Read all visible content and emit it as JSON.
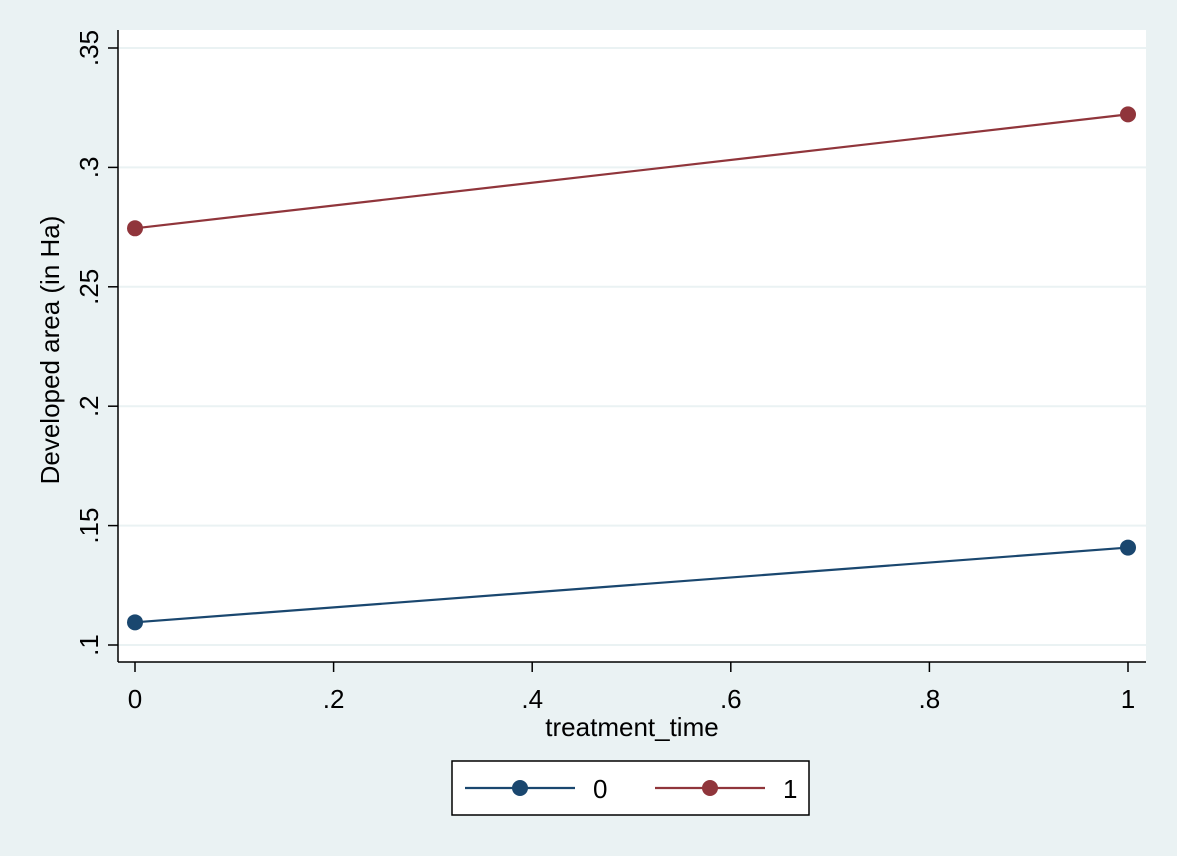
{
  "chart_data": {
    "type": "line",
    "title": "",
    "xlabel": "treatment_time",
    "ylabel": "Developed area (in Ha)",
    "xlim": [
      0,
      1
    ],
    "ylim": [
      0.1,
      0.35
    ],
    "x_ticks": [
      0,
      0.2,
      0.4,
      0.6,
      0.8,
      1
    ],
    "x_tick_labels": [
      "0",
      ".2",
      ".4",
      ".6",
      ".8",
      "1"
    ],
    "y_ticks": [
      0.1,
      0.15,
      0.2,
      0.25,
      0.3,
      0.35
    ],
    "y_tick_labels": [
      ".1",
      ".15",
      ".2",
      ".25",
      ".3",
      ".35"
    ],
    "grid": true,
    "legend_position": "bottom-center",
    "series": [
      {
        "name": "0",
        "color": "#1a476f",
        "x": [
          0,
          1
        ],
        "y": [
          0.1095,
          0.1408
        ]
      },
      {
        "name": "1",
        "color": "#90353b",
        "x": [
          0,
          1
        ],
        "y": [
          0.2745,
          0.3222
        ]
      }
    ]
  }
}
